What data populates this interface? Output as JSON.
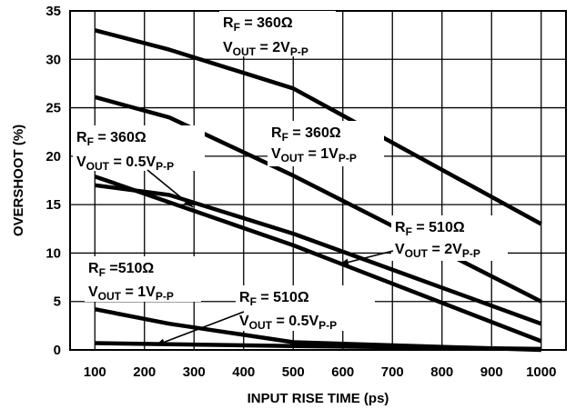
{
  "chart_data": {
    "type": "line",
    "title": "",
    "xlabel": "INPUT RISE TIME (ps)",
    "ylabel": "OVERSHOOT (%)",
    "xlim": [
      50,
      1050
    ],
    "ylim": [
      0,
      35
    ],
    "x_ticks": [
      100,
      200,
      300,
      400,
      500,
      600,
      700,
      800,
      900,
      1000
    ],
    "y_ticks": [
      0,
      5,
      10,
      15,
      20,
      25,
      30,
      35
    ],
    "grid": true,
    "series": [
      {
        "x": [
          100,
          250,
          500,
          1000
        ],
        "values": [
          33,
          31,
          27,
          13
        ]
      },
      {
        "x": [
          100,
          250,
          500,
          1000
        ],
        "values": [
          26.1,
          24,
          18,
          5
        ]
      },
      {
        "x": [
          100,
          250,
          500,
          1000
        ],
        "values": [
          17,
          16,
          12,
          2.7
        ]
      },
      {
        "x": [
          100,
          500,
          1000
        ],
        "values": [
          17.9,
          10.8,
          0.9
        ]
      },
      {
        "x": [
          100,
          250,
          500,
          1000
        ],
        "values": [
          4.2,
          2.7,
          0.8,
          0
        ]
      },
      {
        "x": [
          100,
          500,
          1000
        ],
        "values": [
          0.7,
          0.4,
          0.1
        ]
      }
    ],
    "annotations": [
      {
        "rf": "R",
        "rf_sub": "F",
        "rf_val": " = 360Ω",
        "vout": "V",
        "vout_sub": "OUT",
        "vout_val": " = 2V",
        "pp": "P-P"
      },
      {
        "rf": "R",
        "rf_sub": "F",
        "rf_val": " = 360Ω",
        "vout": "V",
        "vout_sub": "OUT",
        "vout_val": " = 1V",
        "pp": "P-P"
      },
      {
        "rf": "R",
        "rf_sub": "F",
        "rf_val": " = 360Ω",
        "vout": "V",
        "vout_sub": "OUT",
        "vout_val": " = 0.5V",
        "pp": "P-P"
      },
      {
        "rf": "R",
        "rf_sub": "F",
        "rf_val": " = 510Ω",
        "vout": "V",
        "vout_sub": "OUT",
        "vout_val": " = 2V",
        "pp": "P-P"
      },
      {
        "rf": "R",
        "rf_sub": "F",
        "rf_val": " =510Ω",
        "vout": "V",
        "vout_sub": "OUT",
        "vout_val": " = 1V",
        "pp": "P-P"
      },
      {
        "rf": "R",
        "rf_sub": "F",
        "rf_val": " = 510Ω",
        "vout": "V",
        "vout_sub": "OUT",
        "vout_val": " = 0.5V",
        "pp": "P-P"
      }
    ]
  }
}
